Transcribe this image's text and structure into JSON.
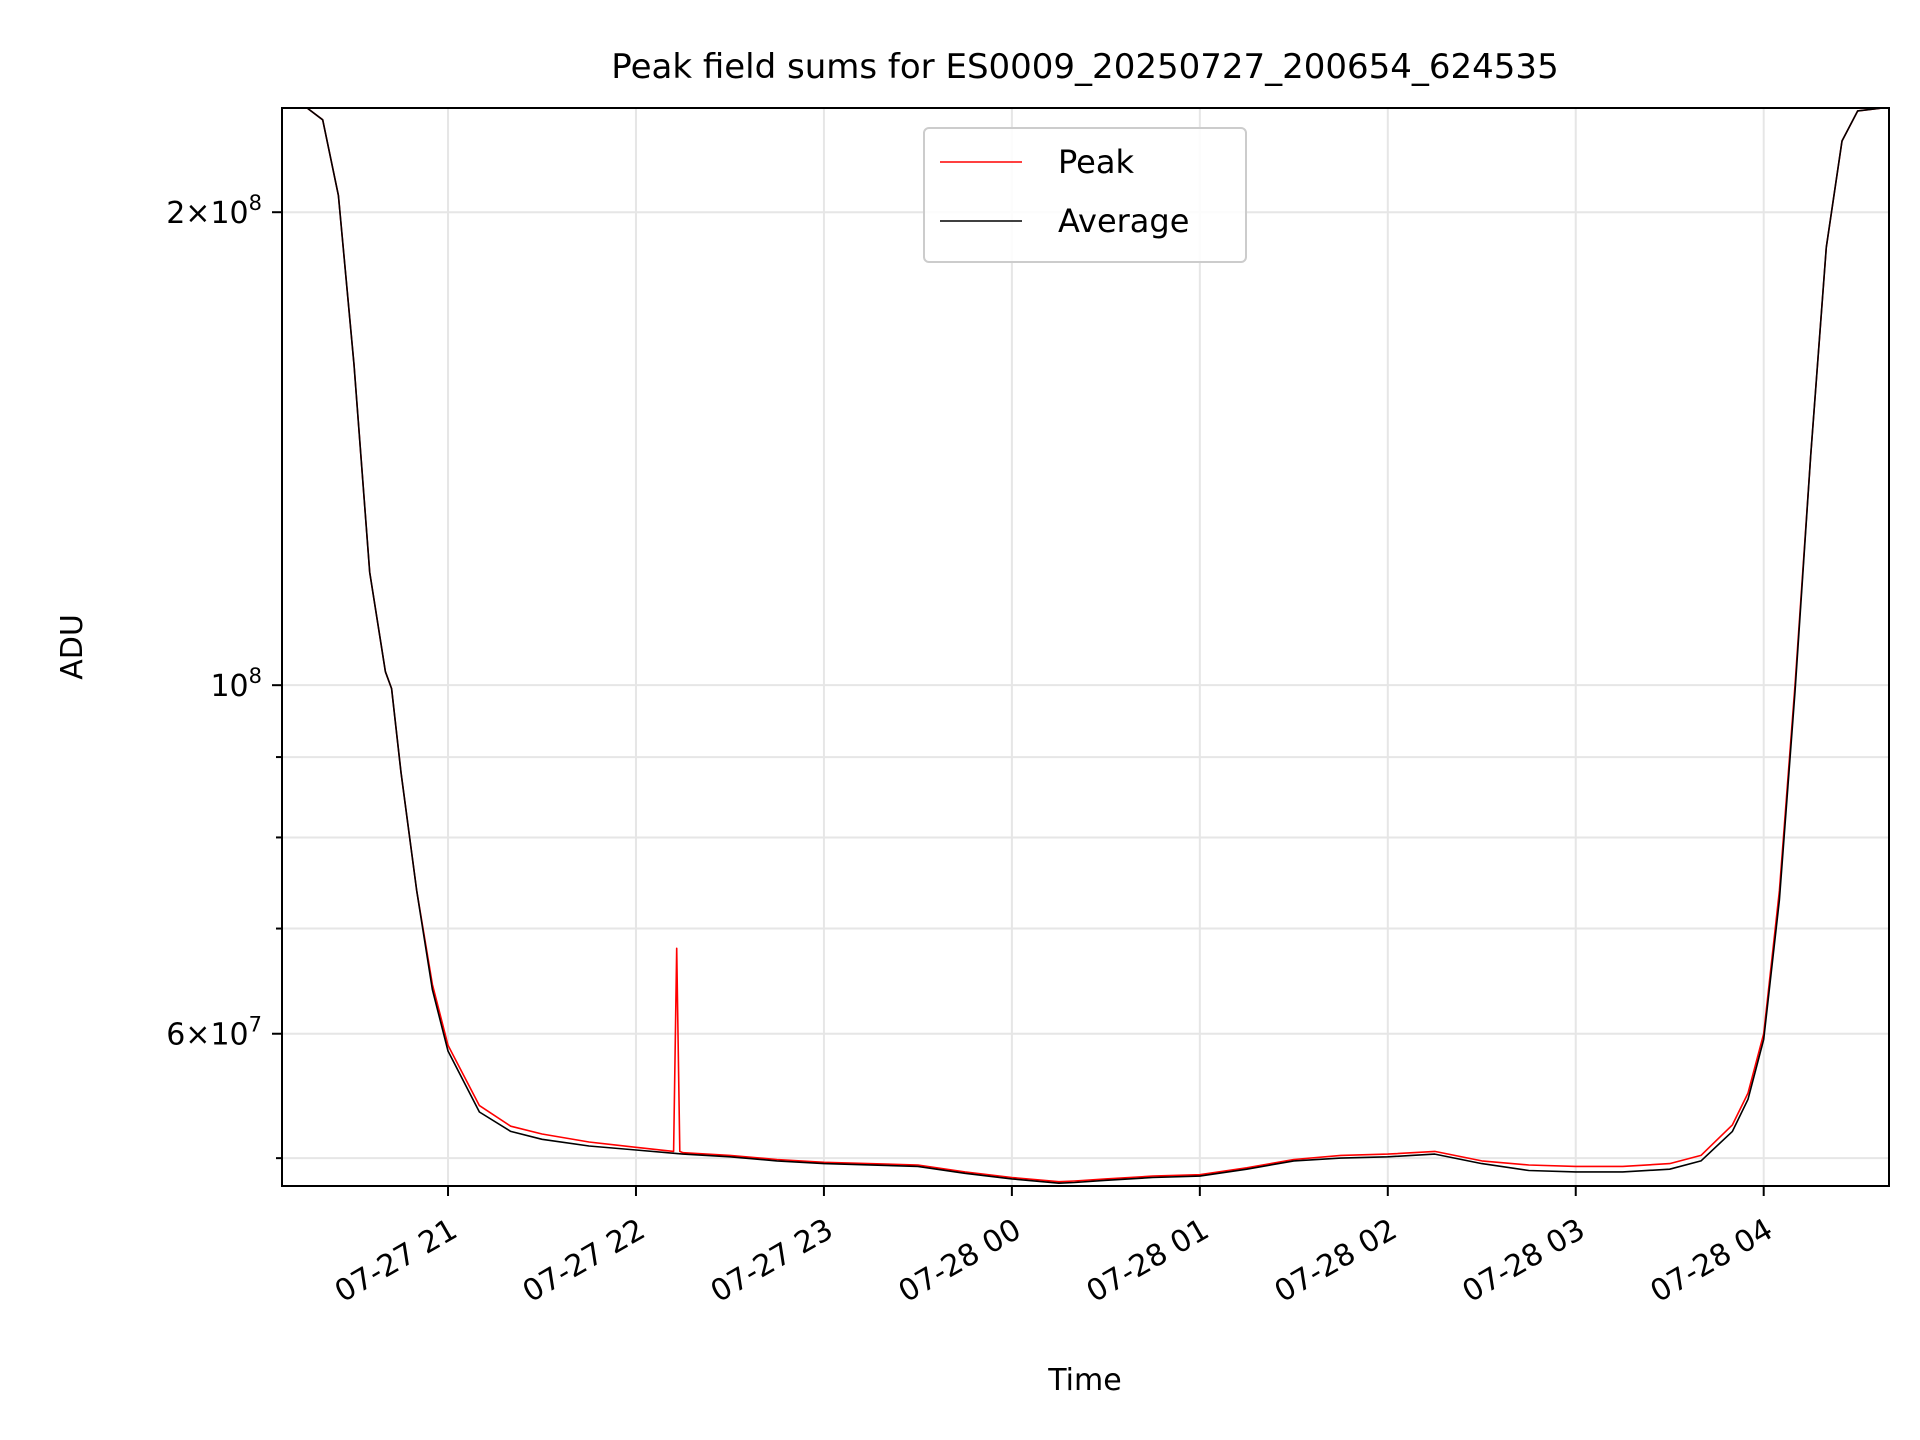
{
  "chart_data": {
    "type": "line",
    "title": "Peak field sums for ES0009_20250727_200654_624535",
    "xlabel": "Time",
    "ylabel": "ADU",
    "yscale": "log",
    "grid": true,
    "legend_position": "top-center",
    "xlim": [
      "2025-07-27 20:07",
      "2025-07-28 04:40"
    ],
    "ylim": [
      48000000,
      233000000
    ],
    "x_ticks": [
      {
        "value": "2025-07-27 21:00",
        "label": "07-27 21"
      },
      {
        "value": "2025-07-27 22:00",
        "label": "07-27 22"
      },
      {
        "value": "2025-07-27 23:00",
        "label": "07-27 23"
      },
      {
        "value": "2025-07-28 00:00",
        "label": "07-28 00"
      },
      {
        "value": "2025-07-28 01:00",
        "label": "07-28 01"
      },
      {
        "value": "2025-07-28 02:00",
        "label": "07-28 02"
      },
      {
        "value": "2025-07-28 03:00",
        "label": "07-28 03"
      },
      {
        "value": "2025-07-28 04:00",
        "label": "07-28 04"
      }
    ],
    "y_major_ticks": [
      {
        "value": 100000000,
        "base": "10",
        "exp": "8"
      },
      {
        "value": 200000000,
        "mant": "2",
        "base": "10",
        "exp": "8"
      },
      {
        "value": 60000000,
        "mant": "6",
        "base": "10",
        "exp": "7"
      }
    ],
    "y_minor_ticks": [
      50000000,
      70000000,
      80000000,
      90000000
    ],
    "series": [
      {
        "name": "Peak",
        "color": "#ff0000",
        "x": [
          "2025-07-27 20:15",
          "2025-07-27 20:20",
          "2025-07-27 20:25",
          "2025-07-27 20:30",
          "2025-07-27 20:35",
          "2025-07-27 20:40",
          "2025-07-27 20:42",
          "2025-07-27 20:45",
          "2025-07-27 20:50",
          "2025-07-27 20:55",
          "2025-07-27 21:00",
          "2025-07-27 21:10",
          "2025-07-27 21:20",
          "2025-07-27 21:30",
          "2025-07-27 21:45",
          "2025-07-27 22:00",
          "2025-07-27 22:12",
          "2025-07-27 22:13",
          "2025-07-27 22:14",
          "2025-07-27 22:15",
          "2025-07-27 22:30",
          "2025-07-27 22:45",
          "2025-07-27 23:00",
          "2025-07-27 23:30",
          "2025-07-27 23:45",
          "2025-07-28 00:00",
          "2025-07-28 00:15",
          "2025-07-28 00:20",
          "2025-07-28 00:30",
          "2025-07-28 00:45",
          "2025-07-28 01:00",
          "2025-07-28 01:15",
          "2025-07-28 01:30",
          "2025-07-28 01:45",
          "2025-07-28 02:00",
          "2025-07-28 02:15",
          "2025-07-28 02:30",
          "2025-07-28 02:45",
          "2025-07-28 03:00",
          "2025-07-28 03:15",
          "2025-07-28 03:30",
          "2025-07-28 03:40",
          "2025-07-28 03:50",
          "2025-07-28 03:55",
          "2025-07-28 04:00",
          "2025-07-28 04:05",
          "2025-07-28 04:10",
          "2025-07-28 04:15",
          "2025-07-28 04:20",
          "2025-07-28 04:25",
          "2025-07-28 04:30",
          "2025-07-28 04:38"
        ],
        "y": [
          233000000,
          229000000,
          205000000,
          160000000,
          118000000,
          102000000,
          99500000,
          88000000,
          74000000,
          64500000,
          59000000,
          54000000,
          52400000,
          51800000,
          51200000,
          50800000,
          50500000,
          68000000,
          50500000,
          50400000,
          50200000,
          49900000,
          49700000,
          49500000,
          49000000,
          48600000,
          48300000,
          48350000,
          48500000,
          48700000,
          48800000,
          49300000,
          49900000,
          50200000,
          50300000,
          50500000,
          49800000,
          49500000,
          49400000,
          49400000,
          49600000,
          50200000,
          52500000,
          55000000,
          60000000,
          74000000,
          100000000,
          140000000,
          190000000,
          222000000,
          232000000,
          233000000
        ]
      },
      {
        "name": "Average",
        "color": "#000000",
        "x": [
          "2025-07-27 20:15",
          "2025-07-27 20:20",
          "2025-07-27 20:25",
          "2025-07-27 20:30",
          "2025-07-27 20:35",
          "2025-07-27 20:40",
          "2025-07-27 20:42",
          "2025-07-27 20:45",
          "2025-07-27 20:50",
          "2025-07-27 20:55",
          "2025-07-27 21:00",
          "2025-07-27 21:10",
          "2025-07-27 21:20",
          "2025-07-27 21:30",
          "2025-07-27 21:45",
          "2025-07-27 22:00",
          "2025-07-27 22:15",
          "2025-07-27 22:30",
          "2025-07-27 22:45",
          "2025-07-27 23:00",
          "2025-07-27 23:30",
          "2025-07-27 23:45",
          "2025-07-28 00:00",
          "2025-07-28 00:15",
          "2025-07-28 00:20",
          "2025-07-28 00:30",
          "2025-07-28 00:45",
          "2025-07-28 01:00",
          "2025-07-28 01:15",
          "2025-07-28 01:30",
          "2025-07-28 01:45",
          "2025-07-28 02:00",
          "2025-07-28 02:15",
          "2025-07-28 02:30",
          "2025-07-28 02:45",
          "2025-07-28 03:00",
          "2025-07-28 03:15",
          "2025-07-28 03:30",
          "2025-07-28 03:40",
          "2025-07-28 03:50",
          "2025-07-28 03:55",
          "2025-07-28 04:00",
          "2025-07-28 04:05",
          "2025-07-28 04:10",
          "2025-07-28 04:15",
          "2025-07-28 04:20",
          "2025-07-28 04:25",
          "2025-07-28 04:30",
          "2025-07-28 04:38"
        ],
        "y": [
          233000000,
          229000000,
          205000000,
          160000000,
          118000000,
          102000000,
          99500000,
          88000000,
          74000000,
          64000000,
          58500000,
          53500000,
          52000000,
          51400000,
          50900000,
          50600000,
          50300000,
          50100000,
          49800000,
          49600000,
          49400000,
          48900000,
          48500000,
          48200000,
          48250000,
          48400000,
          48600000,
          48700000,
          49200000,
          49800000,
          50000000,
          50100000,
          50300000,
          49600000,
          49100000,
          49000000,
          49000000,
          49200000,
          49800000,
          52000000,
          54500000,
          59500000,
          73000000,
          99000000,
          140000000,
          190000000,
          222000000,
          232000000,
          233000000
        ]
      }
    ]
  }
}
